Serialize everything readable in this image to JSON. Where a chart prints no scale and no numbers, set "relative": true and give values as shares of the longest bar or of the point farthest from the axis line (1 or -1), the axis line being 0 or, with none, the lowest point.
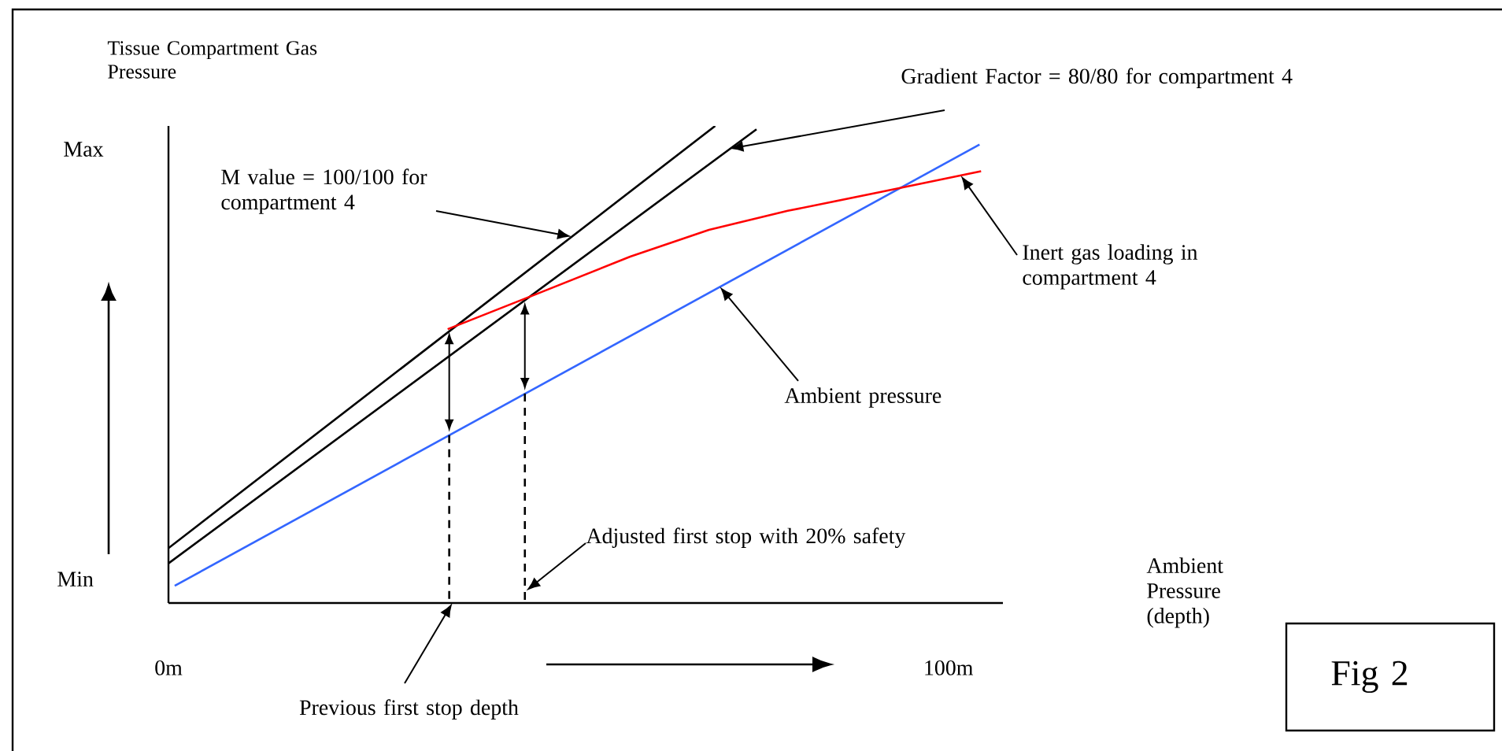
{
  "chart_data": {
    "type": "line",
    "relative": true,
    "ylabel": "Tissue Compartment Gas Pressure",
    "xlim": [
      0,
      107
    ],
    "xticks": [
      {
        "value": 0,
        "label": "0m"
      },
      {
        "value": 100,
        "label": "100m"
      }
    ],
    "series": [
      {
        "color": "#000000",
        "x": [
          0,
          70.1
        ],
        "values": [
          0.115,
          1.0
        ]
      },
      {
        "color": "#000000",
        "x": [
          0,
          75.4
        ],
        "values": [
          0.083,
          0.993
        ]
      },
      {
        "color": "#3366ff",
        "x": [
          0.8,
          104.0
        ],
        "values": [
          0.036,
          0.961
        ]
      },
      {
        "color": "#ff0000",
        "x": [
          35.8,
          47.1,
          59.2,
          69.3,
          79.4,
          91.5,
          104.2
        ],
        "values": [
          0.574,
          0.647,
          0.726,
          0.782,
          0.822,
          0.862,
          0.905
        ]
      },
      {
        "color": "#000000",
        "line_style": "dashed",
        "x": [
          36,
          36
        ],
        "values": [
          0.352,
          0
        ]
      },
      {
        "color": "#000000",
        "line_style": "dashed",
        "x": [
          45.7,
          45.7
        ],
        "values": [
          0.439,
          0
        ]
      }
    ],
    "annotations": [
      {
        "text": "M value = 100/100 for compartment 4",
        "x": 51.7,
        "y": 0.768
      },
      {
        "text": "Gradient Factor = 80/80 for compartment 4",
        "x": 71.9,
        "y": 0.952
      },
      {
        "text": "Inert gas loading in compartment 4",
        "x": 101.6,
        "y": 0.896
      },
      {
        "text": "Ambient pressure",
        "x": 70.7,
        "y": 0.663
      },
      {
        "text": "Adjusted first stop with 20% safety",
        "x": 45.9,
        "y": 0.026
      },
      {
        "text": "Previous first stop depth",
        "x": 36.4,
        "y": 0
      },
      "Fig 2",
      "Max",
      "Min",
      "Ambient Pressure (depth)"
    ]
  }
}
